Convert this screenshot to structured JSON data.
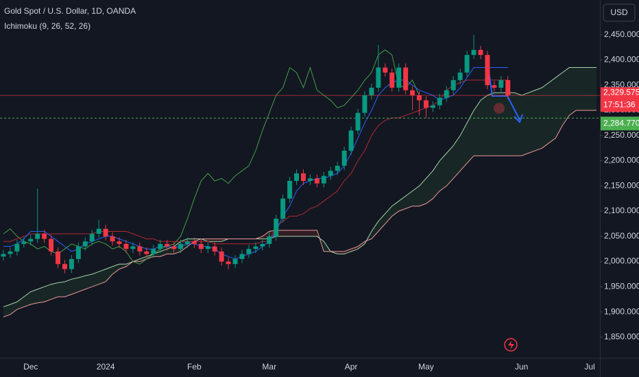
{
  "header": {
    "title": "Gold Spot / U.S. Dollar, 1D, OANDA",
    "indicator": "Ichimoku (9, 26, 52, 26)",
    "currency": "USD"
  },
  "chart_data": {
    "type": "candlestick",
    "categories": [
      null,
      null,
      null,
      null,
      "Dec",
      null,
      null,
      null,
      null,
      null,
      null,
      null,
      null,
      null,
      null,
      "2024",
      null,
      null,
      null,
      null,
      null,
      null,
      null,
      null,
      null,
      null,
      null,
      null,
      "Feb",
      null,
      null,
      null,
      null,
      null,
      null,
      null,
      null,
      null,
      null,
      "Mar",
      null,
      null,
      null,
      null,
      null,
      null,
      null,
      null,
      null,
      null,
      null,
      "Apr",
      null,
      null,
      null,
      null,
      null,
      null,
      null,
      null,
      null,
      null,
      "May",
      null,
      null,
      null,
      null,
      null,
      null,
      null,
      null,
      null,
      null,
      null,
      null,
      null,
      "Jun",
      null,
      null,
      null,
      null,
      null,
      null,
      null,
      null,
      null,
      "Jul",
      null
    ],
    "open": [
      2010,
      2015,
      2020,
      2035,
      2040,
      2045,
      2055,
      2045,
      2020,
      1995,
      1985,
      2005,
      2030,
      2040,
      2055,
      2065,
      2050,
      2040,
      2035,
      2025,
      2030,
      2020,
      2015,
      2025,
      2035,
      2030,
      2025,
      2035,
      2040,
      2035,
      2025,
      2030,
      2020,
      2000,
      1995,
      2005,
      2015,
      2025,
      2030,
      2035,
      2050,
      2085,
      2125,
      2160,
      2175,
      2160,
      2165,
      2155,
      2170,
      2180,
      2190,
      2220,
      2260,
      2295,
      2330,
      2345,
      2385,
      2375,
      2345,
      2385,
      2340,
      2330,
      2320,
      2305,
      2310,
      2325,
      2340,
      2360,
      2375,
      2410,
      2420,
      2410,
      2350,
      2345,
      2360,
      null,
      null,
      null,
      null,
      null,
      null,
      null,
      null,
      null,
      null,
      null,
      null,
      null
    ],
    "high": [
      2023,
      2028,
      2043,
      2048,
      2053,
      2145,
      2063,
      2053,
      2028,
      2003,
      2013,
      2038,
      2048,
      2063,
      2083,
      2073,
      2058,
      2048,
      2043,
      2038,
      2038,
      2028,
      2033,
      2043,
      2043,
      2038,
      2043,
      2048,
      2048,
      2043,
      2038,
      2038,
      2028,
      2008,
      2013,
      2023,
      2033,
      2038,
      2043,
      2058,
      2093,
      2133,
      2168,
      2183,
      2183,
      2173,
      2173,
      2178,
      2188,
      2198,
      2228,
      2268,
      2303,
      2338,
      2353,
      2430,
      2393,
      2383,
      2393,
      2393,
      2348,
      2338,
      2328,
      2318,
      2333,
      2348,
      2368,
      2383,
      2418,
      2450,
      2428,
      2418,
      2358,
      2368,
      2368,
      null,
      null,
      null,
      null,
      null,
      null,
      null,
      null,
      null,
      null,
      null,
      null,
      null
    ],
    "low": [
      2002,
      2007,
      2012,
      2027,
      2032,
      2037,
      2037,
      2012,
      1987,
      1977,
      1977,
      1997,
      2022,
      2032,
      2047,
      2042,
      2032,
      2027,
      2017,
      2017,
      2012,
      2007,
      2007,
      2017,
      2022,
      2017,
      2017,
      2027,
      2027,
      2017,
      2017,
      2012,
      1992,
      1985,
      1987,
      1997,
      2007,
      2017,
      2022,
      2027,
      2042,
      2077,
      2117,
      2152,
      2152,
      2152,
      2147,
      2147,
      2162,
      2172,
      2182,
      2212,
      2252,
      2287,
      2322,
      2337,
      2367,
      2337,
      2337,
      2332,
      2300,
      2290,
      2285,
      2297,
      2302,
      2317,
      2332,
      2352,
      2367,
      2402,
      2402,
      2342,
      2337,
      2337,
      2322,
      null,
      null,
      null,
      null,
      null,
      null,
      null,
      null,
      null,
      null,
      null,
      null,
      null
    ],
    "close": [
      2015,
      2020,
      2035,
      2040,
      2045,
      2055,
      2045,
      2020,
      1995,
      1985,
      2005,
      2030,
      2040,
      2055,
      2065,
      2050,
      2040,
      2035,
      2025,
      2030,
      2020,
      2015,
      2025,
      2035,
      2030,
      2025,
      2035,
      2040,
      2035,
      2025,
      2030,
      2020,
      2000,
      1995,
      2005,
      2015,
      2025,
      2030,
      2035,
      2050,
      2085,
      2125,
      2160,
      2175,
      2160,
      2165,
      2155,
      2170,
      2180,
      2190,
      2220,
      2260,
      2295,
      2330,
      2345,
      2385,
      2375,
      2345,
      2385,
      2340,
      2330,
      2320,
      2305,
      2310,
      2325,
      2340,
      2360,
      2375,
      2410,
      2420,
      2410,
      2350,
      2345,
      2360,
      2330,
      null,
      null,
      null,
      null,
      null,
      null,
      null,
      null,
      null,
      null,
      null,
      null,
      null
    ],
    "up_color": "#089981",
    "down_color": "#f23645",
    "series": [
      {
        "color": "#a5d6a7",
        "values": [
          1910,
          1915,
          1920,
          1930,
          1940,
          1945,
          1950,
          1955,
          1958,
          1960,
          1965,
          1968,
          1972,
          1975,
          1980,
          1985,
          1990,
          1995,
          1995,
          2000,
          2005,
          2010,
          2015,
          2020,
          2025,
          2030,
          2040,
          2045,
          2045,
          2045,
          2040,
          2040,
          2040,
          2045,
          2045,
          2045,
          2045,
          2045,
          2045,
          2045,
          2050,
          2050,
          2050,
          2050,
          2050,
          2050,
          2050,
          2040,
          2020,
          2015,
          2015,
          2020,
          2025,
          2035,
          2060,
          2080,
          2095,
          2110,
          2120,
          2130,
          2140,
          2150,
          2165,
          2180,
          2200,
          2215,
          2230,
          2250,
          2275,
          2300,
          2320,
          2330,
          2335,
          2335,
          2335,
          2335,
          2330,
          2335,
          2340,
          2345,
          2355,
          2365,
          2375,
          2385,
          2385,
          2385,
          2385,
          2385
        ]
      },
      {
        "color": "#ef9a9a",
        "values": [
          1890,
          1895,
          1905,
          1910,
          1915,
          1918,
          1920,
          1925,
          1930,
          1930,
          1935,
          1940,
          1945,
          1950,
          1955,
          1960,
          1975,
          1985,
          1990,
          2000,
          2000,
          2005,
          2010,
          2010,
          2015,
          2015,
          2020,
          2030,
          2040,
          2045,
          2045,
          2045,
          2045,
          2045,
          2045,
          2045,
          2045,
          2045,
          2050,
          2060,
          2062,
          2062,
          2062,
          2062,
          2062,
          2062,
          2062,
          2020,
          2020,
          2020,
          2020,
          2025,
          2030,
          2040,
          2045,
          2060,
          2075,
          2090,
          2100,
          2105,
          2110,
          2110,
          2115,
          2125,
          2140,
          2150,
          2165,
          2180,
          2195,
          2210,
          2210,
          2210,
          2210,
          2210,
          2210,
          2210,
          2210,
          2215,
          2220,
          2225,
          2235,
          2245,
          2270,
          2290,
          2300,
          2300,
          2300,
          2300
        ]
      },
      {
        "color": "#43a047",
        "values": [
          2055,
          2065,
          2050,
          2040,
          2035,
          2025,
          2030,
          2020,
          2015,
          2025,
          2035,
          2030,
          2025,
          2035,
          2040,
          2035,
          2025,
          2030,
          2020,
          2000,
          1995,
          2005,
          2015,
          2025,
          2030,
          2035,
          2050,
          2085,
          2125,
          2160,
          2175,
          2160,
          2165,
          2155,
          2170,
          2180,
          2190,
          2220,
          2260,
          2295,
          2330,
          2345,
          2385,
          2375,
          2345,
          2385,
          2340,
          2330,
          2320,
          2305,
          2310,
          2325,
          2340,
          2360,
          2375,
          2410,
          2420,
          2410,
          2350,
          2345,
          2360,
          2330,
          null,
          null,
          null,
          null,
          null,
          null,
          null,
          null,
          null,
          null,
          null,
          null,
          null,
          null,
          null,
          null,
          null,
          null,
          null,
          null,
          null,
          null,
          null,
          null,
          null,
          null
        ]
      },
      {
        "color": "#b22833",
        "values": [
          2040,
          2040,
          2045,
          2050,
          2055,
          2055,
          2055,
          2055,
          2055,
          2055,
          2055,
          2055,
          2055,
          2055,
          2060,
          2060,
          2060,
          2060,
          2060,
          2055,
          2050,
          2045,
          2045,
          2040,
          2040,
          2040,
          2040,
          2040,
          2040,
          2040,
          2040,
          2035,
          2035,
          2035,
          2035,
          2035,
          2035,
          2035,
          2040,
          2040,
          2070,
          2080,
          2090,
          2090,
          2095,
          2105,
          2110,
          2120,
          2130,
          2140,
          2160,
          2175,
          2200,
          2220,
          2250,
          2270,
          2280,
          2285,
          2285,
          2290,
          2295,
          2300,
          2305,
          2310,
          2320,
          2340,
          2350,
          2355,
          2360,
          2360,
          2360,
          2360,
          2360,
          2360,
          2360,
          null,
          null,
          null,
          null,
          null,
          null,
          null,
          null,
          null,
          null,
          null,
          null,
          null
        ]
      },
      {
        "color": "#2962ff",
        "values": [
          2030,
          2030,
          2035,
          2045,
          2060,
          2060,
          2060,
          2050,
          2040,
          2030,
          2020,
          2025,
          2035,
          2040,
          2045,
          2050,
          2050,
          2045,
          2040,
          2035,
          2030,
          2025,
          2025,
          2030,
          2030,
          2028,
          2030,
          2035,
          2035,
          2030,
          2030,
          2025,
          2015,
          2010,
          2005,
          2010,
          2015,
          2020,
          2030,
          2040,
          2060,
          2090,
          2110,
          2140,
          2155,
          2160,
          2165,
          2165,
          2170,
          2175,
          2190,
          2215,
          2245,
          2275,
          2300,
          2330,
          2345,
          2355,
          2360,
          2360,
          2350,
          2340,
          2335,
          2330,
          2320,
          2325,
          2330,
          2345,
          2365,
          2385,
          2385,
          2385,
          2385,
          2385,
          2385,
          null,
          null,
          null,
          null,
          null,
          null,
          null,
          null,
          null,
          null,
          null,
          null,
          null
        ]
      }
    ],
    "ylim": [
      1809,
      2519
    ],
    "yticks": [
      {
        "value": 1850,
        "label": "1,850.000"
      },
      {
        "value": 1900,
        "label": "1,900.000"
      },
      {
        "value": 1950,
        "label": "1,950.000"
      },
      {
        "value": 2000,
        "label": "2,000.000"
      },
      {
        "value": 2050,
        "label": "2,050.000"
      },
      {
        "value": 2100,
        "label": "2,100.000"
      },
      {
        "value": 2150,
        "label": "2,150.000"
      },
      {
        "value": 2200,
        "label": "2,200.000"
      },
      {
        "value": 2250,
        "label": "2,250.000"
      },
      {
        "value": 2300,
        "label": "2,300.000"
      },
      {
        "value": 2350,
        "label": "2,350.000"
      },
      {
        "value": 2400,
        "label": "2,400.000"
      },
      {
        "value": 2450,
        "label": "2,450.000"
      }
    ],
    "last_price": {
      "value": 2329.575,
      "label": "2,329.575",
      "color": "#f23645"
    },
    "countdown": "17:51:36",
    "reference_price": {
      "value": 2284.77,
      "label": "2,284.770",
      "color": "#4caf50"
    }
  }
}
